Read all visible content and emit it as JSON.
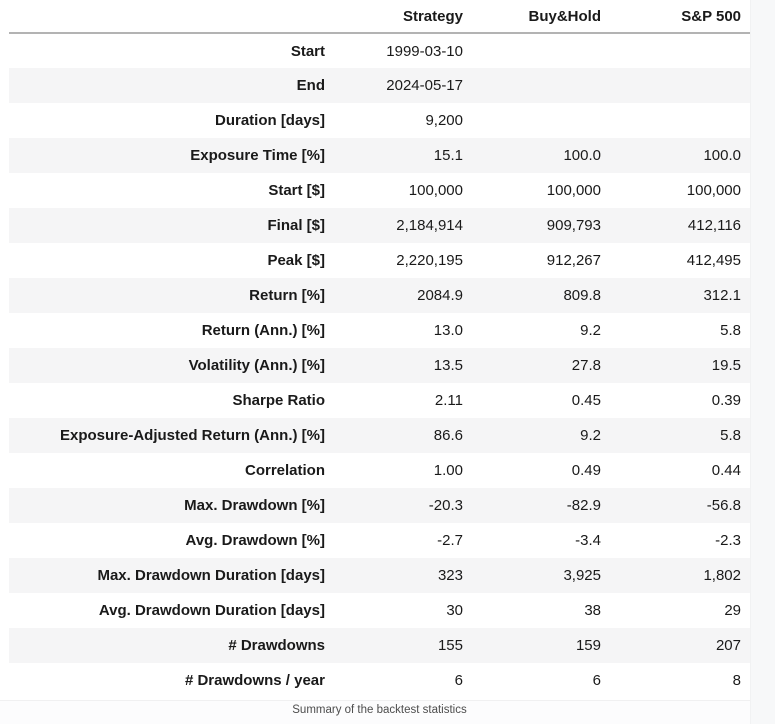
{
  "chart_data": {
    "type": "table",
    "caption": "Summary of the backtest statistics",
    "columns": [
      "",
      "Strategy",
      "Buy&Hold",
      "S&P 500"
    ],
    "rows": [
      {
        "label": "Start",
        "values": [
          "1999-03-10",
          "",
          ""
        ]
      },
      {
        "label": "End",
        "values": [
          "2024-05-17",
          "",
          ""
        ]
      },
      {
        "label": "Duration [days]",
        "values": [
          "9,200",
          "",
          ""
        ]
      },
      {
        "label": "Exposure Time [%]",
        "values": [
          "15.1",
          "100.0",
          "100.0"
        ]
      },
      {
        "label": "Start [$]",
        "values": [
          "100,000",
          "100,000",
          "100,000"
        ]
      },
      {
        "label": "Final [$]",
        "values": [
          "2,184,914",
          "909,793",
          "412,116"
        ]
      },
      {
        "label": "Peak [$]",
        "values": [
          "2,220,195",
          "912,267",
          "412,495"
        ]
      },
      {
        "label": "Return [%]",
        "values": [
          "2084.9",
          "809.8",
          "312.1"
        ]
      },
      {
        "label": "Return (Ann.) [%]",
        "values": [
          "13.0",
          "9.2",
          "5.8"
        ]
      },
      {
        "label": "Volatility (Ann.) [%]",
        "values": [
          "13.5",
          "27.8",
          "19.5"
        ]
      },
      {
        "label": "Sharpe Ratio",
        "values": [
          "2.11",
          "0.45",
          "0.39"
        ]
      },
      {
        "label": "Exposure-Adjusted Return (Ann.) [%]",
        "values": [
          "86.6",
          "9.2",
          "5.8"
        ]
      },
      {
        "label": "Correlation",
        "values": [
          "1.00",
          "0.49",
          "0.44"
        ]
      },
      {
        "label": "Max. Drawdown [%]",
        "values": [
          "-20.3",
          "-82.9",
          "-56.8"
        ]
      },
      {
        "label": "Avg. Drawdown [%]",
        "values": [
          "-2.7",
          "-3.4",
          "-2.3"
        ]
      },
      {
        "label": "Max. Drawdown Duration [days]",
        "values": [
          "323",
          "3,925",
          "1,802"
        ]
      },
      {
        "label": "Avg. Drawdown Duration [days]",
        "values": [
          "30",
          "38",
          "29"
        ]
      },
      {
        "label": "# Drawdowns",
        "values": [
          "155",
          "159",
          "207"
        ]
      },
      {
        "label": "# Drawdowns / year",
        "values": [
          "6",
          "6",
          "8"
        ]
      }
    ]
  },
  "colors": {
    "row_stripe": "#f5f5f6",
    "header_rule": "#b3b3b3",
    "text": "#1a1a1a",
    "caption_text": "#4d4d4d",
    "right_strip": "#f7f8f9",
    "background": "#ffffff"
  }
}
